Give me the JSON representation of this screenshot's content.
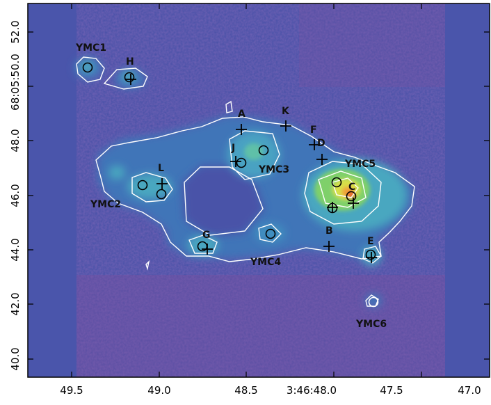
{
  "image": {
    "x_ticks": [
      "49.5",
      "49.0",
      "48.5",
      "3:46:48.0",
      "47.5",
      "47.0"
    ],
    "y_ticks": [
      "52.0",
      "68:05:50.0",
      "48.0",
      "46.0",
      "44.0",
      "42.0",
      "40.0"
    ],
    "source_labels": [
      "YMC1",
      "H",
      "A",
      "K",
      "F",
      "D",
      "J",
      "YMC3",
      "YMC5",
      "L",
      "C",
      "YMC2",
      "G",
      "B",
      "E",
      "YMC4",
      "YMC6"
    ],
    "colors": {
      "background": "#4a52a8",
      "noise_magenta": "#8a4f9e",
      "low_emission": "#3f74b8",
      "mid_emission": "#4fb0c0",
      "high_emission": "#7fd06a",
      "peak": "#f0d23a",
      "peak_center": "#e8452a",
      "contour": "#ffffff",
      "marker": "#000000"
    }
  }
}
